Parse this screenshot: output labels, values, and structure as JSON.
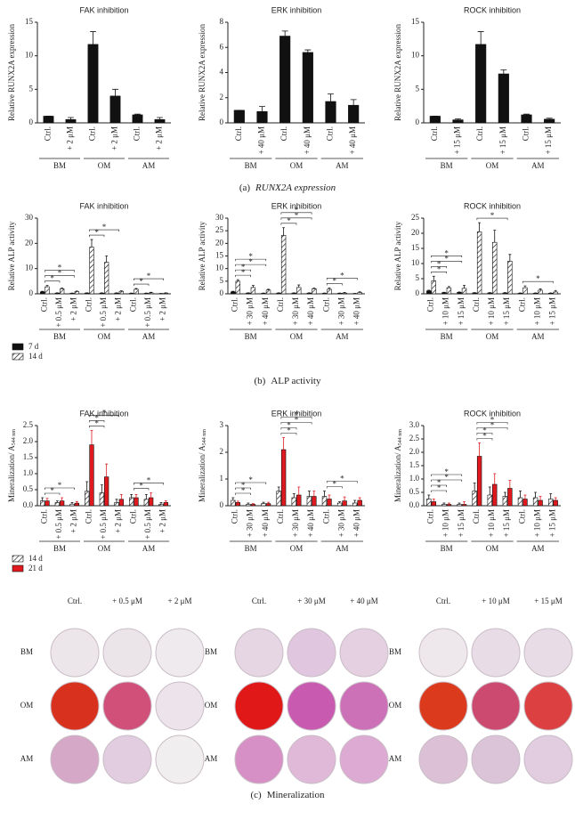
{
  "chart_data": [
    {
      "type": "bar",
      "title": "FAK inhibition",
      "ylabel": "Relative RUNX2A expression",
      "categories": [
        "Ctrl.",
        "+ 2 μM",
        "Ctrl.",
        "+ 2 μM",
        "Ctrl.",
        "+ 2 μM"
      ],
      "groups": [
        "BM",
        "OM",
        "AM"
      ],
      "values": [
        1.0,
        0.5,
        11.7,
        4.0,
        1.2,
        0.5
      ],
      "errors": [
        0,
        0.3,
        1.9,
        1.0,
        0.1,
        0.3
      ],
      "color": "#111111",
      "ylim": [
        0,
        15
      ],
      "yticks": [
        0,
        5,
        10,
        15
      ]
    },
    {
      "type": "bar",
      "title": "ERK inhibition",
      "ylabel": "Relative RUNX2A expression",
      "categories": [
        "Ctrl.",
        "+ 40 μM",
        "Ctrl.",
        "+ 40 μM",
        "Ctrl.",
        "+ 40 μM"
      ],
      "groups": [
        "BM",
        "OM",
        "AM"
      ],
      "values": [
        1.0,
        0.9,
        6.9,
        5.6,
        1.7,
        1.4
      ],
      "errors": [
        0,
        0.4,
        0.4,
        0.2,
        0.6,
        0.45
      ],
      "color": "#111111",
      "ylim": [
        0,
        8
      ],
      "yticks": [
        0,
        2,
        4,
        6,
        8
      ]
    },
    {
      "type": "bar",
      "title": "ROCK inhibition",
      "ylabel": "Relative RUNX2A expression",
      "categories": [
        "Ctrl.",
        "+ 15 μM",
        "Ctrl.",
        "+ 15 μM",
        "Ctrl.",
        "+ 15 μM"
      ],
      "groups": [
        "BM",
        "OM",
        "AM"
      ],
      "values": [
        1.0,
        0.45,
        11.7,
        7.3,
        1.2,
        0.55
      ],
      "errors": [
        0,
        0.15,
        1.9,
        0.6,
        0.1,
        0.15
      ],
      "color": "#111111",
      "ylim": [
        0,
        15
      ],
      "yticks": [
        0,
        5,
        10,
        15
      ]
    },
    {
      "type": "bar",
      "title": "FAK inhibition",
      "ylabel": "Relative ALP activity",
      "categories": [
        "Ctrl.",
        "+ 0.5 μM",
        "+ 2 μM",
        "Ctrl.",
        "+ 0.5 μM",
        "+ 2 μM",
        "Ctrl.",
        "+ 0.5 μM",
        "+ 2 μM"
      ],
      "groups": [
        "BM",
        "OM",
        "AM"
      ],
      "series": [
        {
          "name": "7 d",
          "color": "#111111",
          "values": [
            0.8,
            0.3,
            0.2,
            0.3,
            0.3,
            0.3,
            0.2,
            0.2,
            0.1
          ],
          "errors": [
            0.2,
            0.1,
            0.1,
            0.1,
            0.1,
            0.1,
            0.1,
            0.1,
            0.05
          ]
        },
        {
          "name": "14 d",
          "color": "#ffffff",
          "hatch": true,
          "values": [
            2.8,
            2.0,
            0.9,
            18.5,
            12.5,
            1.0,
            1.8,
            0.4,
            0.3
          ],
          "errors": [
            0.5,
            0.3,
            0.2,
            3.0,
            2.5,
            0.2,
            0.3,
            0.2,
            0.1
          ]
        }
      ],
      "significance": [
        {
          "label": "*",
          "between": [
            0,
            1
          ]
        },
        {
          "label": "*",
          "between": [
            0,
            2
          ]
        },
        {
          "label": "*",
          "between": [
            0,
            2
          ]
        },
        {
          "label": "*",
          "between": [
            3,
            4
          ]
        },
        {
          "label": "*",
          "between": [
            3,
            5
          ]
        },
        {
          "label": "*",
          "between": [
            6,
            7
          ]
        },
        {
          "label": "*",
          "between": [
            6,
            8
          ]
        }
      ],
      "legend": "bottom-left",
      "ylim": [
        0,
        30
      ],
      "yticks": [
        0,
        10,
        20,
        30
      ]
    },
    {
      "type": "bar",
      "title": "ERK inhibition",
      "ylabel": "Relative ALP activity",
      "categories": [
        "Ctrl.",
        "+ 30 μM",
        "+ 40 μM",
        "Ctrl.",
        "+ 30 μM",
        "+ 40 μM",
        "Ctrl.",
        "+ 30 μM",
        "+ 40 μM"
      ],
      "groups": [
        "BM",
        "OM",
        "AM"
      ],
      "series": [
        {
          "color": "#111111",
          "values": [
            0.8,
            0.3,
            0.2,
            0.3,
            0.3,
            0.3,
            0.2,
            0.2,
            0.1
          ],
          "errors": [
            0.2,
            0.1,
            0.1,
            0.1,
            0.1,
            0.1,
            0.1,
            0.1,
            0.05
          ]
        },
        {
          "color": "#ffffff",
          "hatch": true,
          "values": [
            5.0,
            2.5,
            1.5,
            23.2,
            2.5,
            2.0,
            1.8,
            0.3,
            0.5
          ],
          "errors": [
            0.6,
            0.8,
            0.3,
            3.0,
            1.0,
            0.3,
            0.5,
            0.2,
            0.3
          ]
        }
      ],
      "significance": [
        {
          "label": "*",
          "between": [
            0,
            1
          ]
        },
        {
          "label": "*",
          "between": [
            0,
            1
          ]
        },
        {
          "label": "*",
          "between": [
            0,
            2
          ]
        },
        {
          "label": "*",
          "between": [
            0,
            2
          ]
        },
        {
          "label": "*",
          "between": [
            3,
            4
          ]
        },
        {
          "label": "*",
          "between": [
            3,
            5
          ]
        },
        {
          "label": "*",
          "between": [
            3,
            5
          ]
        },
        {
          "label": "*",
          "between": [
            6,
            7
          ]
        },
        {
          "label": "*",
          "between": [
            6,
            8
          ]
        }
      ],
      "ylim": [
        0,
        30
      ],
      "yticks": [
        0,
        5,
        10,
        15,
        20,
        25,
        30
      ]
    },
    {
      "type": "bar",
      "title": "ROCK inhibition",
      "ylabel": "Relative ALP activity",
      "categories": [
        "Ctrl.",
        "+ 10 μM",
        "+ 15 μM",
        "Ctrl.",
        "+ 10 μM",
        "+ 15 μM",
        "Ctrl.",
        "+ 10 μM",
        "+ 15 μM"
      ],
      "groups": [
        "BM",
        "OM",
        "AM"
      ],
      "series": [
        {
          "color": "#111111",
          "values": [
            1.0,
            0.4,
            0.5,
            0.3,
            0.3,
            0.3,
            0.2,
            0.2,
            0.2
          ],
          "errors": [
            0.2,
            0.1,
            0.1,
            0.1,
            0.1,
            0.1,
            0.1,
            0.1,
            0.1
          ]
        },
        {
          "color": "#ffffff",
          "hatch": true,
          "values": [
            4.3,
            2.0,
            1.8,
            20.5,
            17.0,
            10.8,
            2.0,
            1.2,
            0.6
          ],
          "errors": [
            1.5,
            0.4,
            1.0,
            3.0,
            4.0,
            2.2,
            0.6,
            0.4,
            0.5
          ]
        }
      ],
      "significance": [
        {
          "label": "*",
          "between": [
            0,
            1
          ]
        },
        {
          "label": "*",
          "between": [
            0,
            1
          ]
        },
        {
          "label": "*",
          "between": [
            0,
            2
          ]
        },
        {
          "label": "*",
          "between": [
            0,
            2
          ]
        },
        {
          "label": "*",
          "between": [
            3,
            5
          ]
        },
        {
          "label": "*",
          "between": [
            6,
            8
          ]
        }
      ],
      "ylim": [
        0,
        25
      ],
      "yticks": [
        0,
        5,
        10,
        15,
        20,
        25
      ]
    },
    {
      "type": "bar",
      "title": "FAK inhibition",
      "ylabel": "Mineralization/ A",
      "ylabel_sub": "544 nm",
      "categories": [
        "Ctrl.",
        "+ 0.5 μM",
        "+ 2 μM",
        "Ctrl.",
        "+ 0.5 μM",
        "+ 2 μM",
        "Ctrl.",
        "+ 0.5 μM",
        "+ 2 μM"
      ],
      "groups": [
        "BM",
        "OM",
        "AM"
      ],
      "series": [
        {
          "name": "14 d",
          "color": "#ffffff",
          "hatch": true,
          "values": [
            0.15,
            0.1,
            0.05,
            0.45,
            0.4,
            0.1,
            0.25,
            0.2,
            0.05
          ],
          "errors": [
            0.1,
            0.05,
            0.05,
            0.3,
            0.25,
            0.1,
            0.1,
            0.15,
            0.05
          ]
        },
        {
          "name": "21 d",
          "color": "#e0191e",
          "values": [
            0.15,
            0.15,
            0.08,
            1.9,
            0.9,
            0.2,
            0.25,
            0.25,
            0.1
          ],
          "errors": [
            0.08,
            0.1,
            0.05,
            0.45,
            0.4,
            0.15,
            0.1,
            0.15,
            0.05
          ]
        }
      ],
      "significance": [
        {
          "label": "*",
          "between": [
            0,
            1
          ]
        },
        {
          "label": "*",
          "between": [
            0,
            2
          ]
        },
        {
          "label": "*",
          "between": [
            3,
            4
          ]
        },
        {
          "label": "*",
          "between": [
            3,
            4
          ]
        },
        {
          "label": "*",
          "between": [
            3,
            5
          ]
        },
        {
          "label": "*",
          "between": [
            6,
            7
          ]
        },
        {
          "label": "*",
          "between": [
            6,
            8
          ]
        }
      ],
      "legend": "bottom-left",
      "ylim": [
        0,
        2.5
      ],
      "yticks": [
        {
          "value": 0,
          "label": "0.0"
        },
        0.5,
        {
          "value": 1,
          "label": "1.0"
        },
        1.5,
        {
          "value": 2,
          "label": "2.0"
        },
        2.5
      ]
    },
    {
      "type": "bar",
      "title": "ERK inhibition",
      "ylabel": "Mineralization/ A",
      "ylabel_sub": "544 nm",
      "categories": [
        "Ctrl.",
        "+ 30 μM",
        "+ 40 μM",
        "Ctrl.",
        "+ 30 μM",
        "+ 40 μM",
        "Ctrl.",
        "+ 30 μM",
        "+ 40 μM"
      ],
      "groups": [
        "BM",
        "OM",
        "AM"
      ],
      "series": [
        {
          "color": "#ffffff",
          "hatch": true,
          "values": [
            0.2,
            0.05,
            0.08,
            0.55,
            0.3,
            0.35,
            0.35,
            0.1,
            0.1
          ],
          "errors": [
            0.1,
            0.05,
            0.05,
            0.15,
            0.15,
            0.2,
            0.2,
            0.05,
            0.1
          ]
        },
        {
          "color": "#e0191e",
          "values": [
            0.12,
            0.05,
            0.08,
            2.1,
            0.4,
            0.35,
            0.25,
            0.18,
            0.2
          ],
          "errors": [
            0.05,
            0.03,
            0.05,
            0.45,
            0.3,
            0.2,
            0.15,
            0.15,
            0.1
          ]
        }
      ],
      "significance": [
        {
          "label": "*",
          "between": [
            0,
            1
          ]
        },
        {
          "label": "*",
          "between": [
            0,
            1
          ]
        },
        {
          "label": "*",
          "between": [
            0,
            2
          ]
        },
        {
          "label": "*",
          "between": [
            3,
            4
          ]
        },
        {
          "label": "*",
          "between": [
            3,
            4
          ]
        },
        {
          "label": "*",
          "between": [
            3,
            5
          ]
        },
        {
          "label": "*",
          "between": [
            3,
            5
          ]
        },
        {
          "label": "*",
          "between": [
            6,
            7
          ]
        },
        {
          "label": "*",
          "between": [
            6,
            8
          ]
        }
      ],
      "ylim": [
        0,
        3
      ],
      "yticks": [
        0,
        1,
        2,
        3
      ]
    },
    {
      "type": "bar",
      "title": "ROCK inhibition",
      "ylabel": "Mineralization/ A",
      "ylabel_sub": "544 nm",
      "categories": [
        "Ctrl.",
        "+ 10 μM",
        "+ 15 μM",
        "Ctrl.",
        "+ 10 μM",
        "+ 15 μM",
        "Ctrl.",
        "+ 10 μM",
        "+ 15 μM"
      ],
      "groups": [
        "BM",
        "OM",
        "AM"
      ],
      "series": [
        {
          "color": "#ffffff",
          "hatch": true,
          "values": [
            0.25,
            0.05,
            0.05,
            0.55,
            0.4,
            0.35,
            0.3,
            0.3,
            0.25
          ],
          "errors": [
            0.15,
            0.05,
            0.05,
            0.3,
            0.3,
            0.15,
            0.25,
            0.2,
            0.2
          ]
        },
        {
          "color": "#e0191e",
          "values": [
            0.15,
            0.05,
            0.05,
            1.85,
            0.8,
            0.65,
            0.25,
            0.2,
            0.2
          ],
          "errors": [
            0.1,
            0.05,
            0.1,
            0.5,
            0.4,
            0.3,
            0.15,
            0.15,
            0.1
          ]
        }
      ],
      "significance": [
        {
          "label": "*",
          "between": [
            0,
            1
          ]
        },
        {
          "label": "*",
          "between": [
            0,
            1
          ]
        },
        {
          "label": "*",
          "between": [
            0,
            2
          ]
        },
        {
          "label": "*",
          "between": [
            0,
            2
          ]
        },
        {
          "label": "*",
          "between": [
            3,
            4
          ]
        },
        {
          "label": "*",
          "between": [
            3,
            4
          ]
        },
        {
          "label": "*",
          "between": [
            3,
            5
          ]
        },
        {
          "label": "*",
          "between": [
            3,
            5
          ]
        }
      ],
      "ylim": [
        0,
        3
      ],
      "yticks": [
        {
          "value": 0,
          "label": "0.0"
        },
        0.5,
        {
          "value": 1,
          "label": "1.0"
        },
        1.5,
        {
          "value": 2,
          "label": "2.0"
        },
        2.5,
        {
          "value": 3,
          "label": "3.0"
        }
      ]
    }
  ],
  "captions": [
    {
      "label": "(a)",
      "text": "RUNX2A expression",
      "italic": true
    },
    {
      "label": "(b)",
      "text": "ALP activity"
    },
    {
      "label": "(c)",
      "text": "Mineralization"
    }
  ],
  "plates": [
    {
      "columns": [
        "Ctrl.",
        "+ 0.5 μM",
        "+ 2 μM"
      ],
      "rows": [
        "BM",
        "OM",
        "AM"
      ],
      "colors": [
        [
          "#ece6ea",
          "#ebe5ea",
          "#eeeaee"
        ],
        [
          "#d8321e",
          "#d0507a",
          "#ece4ea"
        ],
        [
          "#d6a8c8",
          "#e2cde0",
          "#f0eeee"
        ]
      ]
    },
    {
      "columns": [
        "Ctrl.",
        "+ 30 μM",
        "+ 40 μM"
      ],
      "rows": [
        "BM",
        "OM",
        "AM"
      ],
      "colors": [
        [
          "#e6d6e4",
          "#e0c6de",
          "#e4d0e0"
        ],
        [
          "#e01818",
          "#c85ab0",
          "#cc70b8"
        ],
        [
          "#d690c6",
          "#e0b8d8",
          "#dcaad2"
        ]
      ]
    },
    {
      "columns": [
        "Ctrl.",
        "+ 10 μM",
        "+ 15 μM"
      ],
      "rows": [
        "BM",
        "OM",
        "AM"
      ],
      "colors": [
        [
          "#eee8ec",
          "#e8dce6",
          "#e8dce6"
        ],
        [
          "#dc3a1c",
          "#cc4a70",
          "#dc4040"
        ],
        [
          "#dcc0d6",
          "#dcc4d8",
          "#e2cce0"
        ]
      ]
    }
  ]
}
